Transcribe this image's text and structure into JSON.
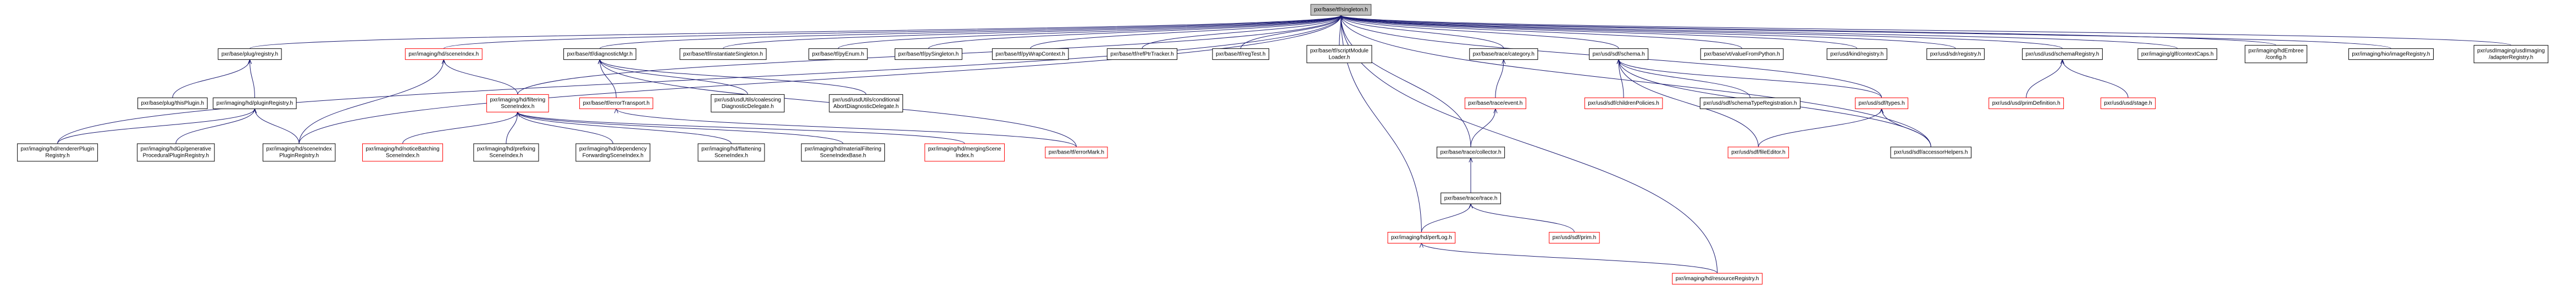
{
  "nodes": [
    {
      "lines": [
        "pxr/base/tf/singleton.h"
      ],
      "border": "#404040",
      "fill": "#bfbfbf"
    },
    {
      "lines": [
        "pxr/base/plug/registry.h"
      ],
      "border": "#000000"
    },
    {
      "lines": [
        "pxr/imaging/hd/sceneIndex.h"
      ],
      "border": "#ff0000"
    },
    {
      "lines": [
        "pxr/base/tf/diagnosticMgr.h"
      ],
      "border": "#000000"
    },
    {
      "lines": [
        "pxr/base/tf/instantiateSingleton.h"
      ],
      "border": "#000000"
    },
    {
      "lines": [
        "pxr/base/tf/pyEnum.h"
      ],
      "border": "#000000"
    },
    {
      "lines": [
        "pxr/base/tf/pySingleton.h"
      ],
      "border": "#000000"
    },
    {
      "lines": [
        "pxr/base/tf/pyWrapContext.h"
      ],
      "border": "#000000"
    },
    {
      "lines": [
        "pxr/base/tf/refPtrTracker.h"
      ],
      "border": "#000000"
    },
    {
      "lines": [
        "pxr/base/tf/regTest.h"
      ],
      "border": "#000000"
    },
    {
      "lines": [
        "pxr/base/tf/scriptModule",
        "Loader.h"
      ],
      "border": "#000000"
    },
    {
      "lines": [
        "pxr/base/trace/category.h"
      ],
      "border": "#000000"
    },
    {
      "lines": [
        "pxr/usd/sdf/schema.h"
      ],
      "border": "#000000"
    },
    {
      "lines": [
        "pxr/base/vt/valueFromPython.h"
      ],
      "border": "#000000"
    },
    {
      "lines": [
        "pxr/usd/kind/registry.h"
      ],
      "border": "#000000"
    },
    {
      "lines": [
        "pxr/usd/sdr/registry.h"
      ],
      "border": "#000000"
    },
    {
      "lines": [
        "pxr/usd/usd/schemaRegistry.h"
      ],
      "border": "#000000"
    },
    {
      "lines": [
        "pxr/imaging/glf/contextCaps.h"
      ],
      "border": "#000000"
    },
    {
      "lines": [
        "pxr/imaging/hdEmbree",
        "/config.h"
      ],
      "border": "#000000"
    },
    {
      "lines": [
        "pxr/imaging/hio/imageRegistry.h"
      ],
      "border": "#000000"
    },
    {
      "lines": [
        "pxr/usdImaging/usdImaging",
        "/adapterRegistry.h"
      ],
      "border": "#000000"
    },
    {
      "lines": [
        "pxr/base/plug/thisPlugin.h"
      ],
      "border": "#000000"
    },
    {
      "lines": [
        "pxr/imaging/hd/pluginRegistry.h"
      ],
      "border": "#000000"
    },
    {
      "lines": [
        "pxr/imaging/hd/filtering",
        "SceneIndex.h"
      ],
      "border": "#ff0000"
    },
    {
      "lines": [
        "pxr/base/tf/errorTransport.h"
      ],
      "border": "#ff0000"
    },
    {
      "lines": [
        "pxr/usd/usdUtils/coalescing",
        "DiagnosticDelegate.h"
      ],
      "border": "#000000"
    },
    {
      "lines": [
        "pxr/usd/usdUtils/conditional",
        "AbortDiagnosticDelegate.h"
      ],
      "border": "#000000"
    },
    {
      "lines": [
        "pxr/base/trace/event.h"
      ],
      "border": "#ff0000"
    },
    {
      "lines": [
        "pxr/usd/sdf/childrenPolicies.h"
      ],
      "border": "#ff0000"
    },
    {
      "lines": [
        "pxr/usd/sdf/schemaTypeRegistration.h"
      ],
      "border": "#000000"
    },
    {
      "lines": [
        "pxr/usd/sdf/types.h"
      ],
      "border": "#ff0000"
    },
    {
      "lines": [
        "pxr/usd/usd/primDefinition.h"
      ],
      "border": "#ff0000"
    },
    {
      "lines": [
        "pxr/usd/usd/stage.h"
      ],
      "border": "#ff0000"
    },
    {
      "lines": [
        "pxr/imaging/hd/rendererPlugin",
        "Registry.h"
      ],
      "border": "#000000"
    },
    {
      "lines": [
        "pxr/imaging/hdGp/generative",
        "ProceduralPluginRegistry.h"
      ],
      "border": "#000000"
    },
    {
      "lines": [
        "pxr/imaging/hd/sceneIndex",
        "PluginRegistry.h"
      ],
      "border": "#000000"
    },
    {
      "lines": [
        "pxr/imaging/hd/noticeBatching",
        "SceneIndex.h"
      ],
      "border": "#ff0000"
    },
    {
      "lines": [
        "pxr/imaging/hd/prefixing",
        "SceneIndex.h"
      ],
      "border": "#000000"
    },
    {
      "lines": [
        "pxr/imaging/hd/dependency",
        "ForwardingSceneIndex.h"
      ],
      "border": "#000000"
    },
    {
      "lines": [
        "pxr/imaging/hd/flattening",
        "SceneIndex.h"
      ],
      "border": "#000000"
    },
    {
      "lines": [
        "pxr/imaging/hd/materialFiltering",
        "SceneIndexBase.h"
      ],
      "border": "#000000"
    },
    {
      "lines": [
        "pxr/imaging/hd/mergingScene",
        "Index.h"
      ],
      "border": "#ff0000"
    },
    {
      "lines": [
        "pxr/base/tf/errorMark.h"
      ],
      "border": "#ff0000"
    },
    {
      "lines": [
        "pxr/base/trace/collector.h"
      ],
      "border": "#000000"
    },
    {
      "lines": [
        "pxr/usd/sdf/fileEditor.h"
      ],
      "border": "#ff0000"
    },
    {
      "lines": [
        "pxr/usd/sdf/accessorHelpers.h"
      ],
      "border": "#000000"
    },
    {
      "lines": [
        "pxr/base/trace/trace.h"
      ],
      "border": "#000000"
    },
    {
      "lines": [
        "pxr/imaging/hd/perfLog.h"
      ],
      "border": "#ff0000"
    },
    {
      "lines": [
        "pxr/usd/sdf/prim.h"
      ],
      "border": "#ff0000"
    },
    {
      "lines": [
        "pxr/imaging/hd/resourceRegistry.h"
      ],
      "border": "#ff0000"
    }
  ]
}
